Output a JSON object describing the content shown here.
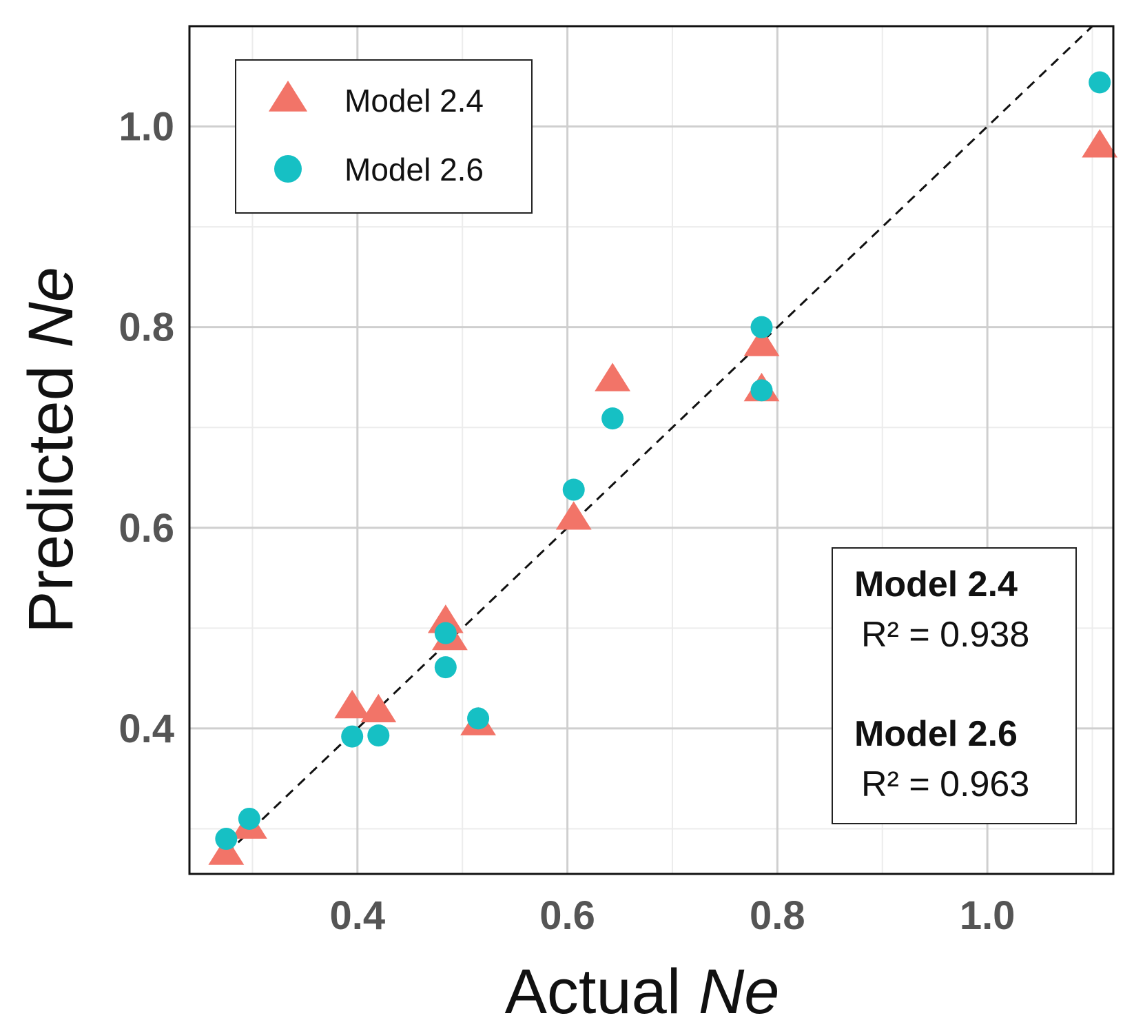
{
  "chart_data": {
    "type": "scatter",
    "xlabel_text": "Actual ",
    "xlabel_var": "Ne",
    "ylabel_text": "Predicted ",
    "ylabel_var": "Ne",
    "xlim": [
      0.24,
      1.12
    ],
    "ylim": [
      0.255,
      1.1
    ],
    "x_ticks": [
      "0.4",
      "0.6",
      "0.8",
      "1.0"
    ],
    "y_ticks": [
      "0.4",
      "0.6",
      "0.8",
      "1.0"
    ],
    "reference_line": "y = x",
    "grid": true,
    "legend_position": "top-left",
    "series": [
      {
        "name": "Model 2.4",
        "marker": "triangle",
        "color": "#f27468",
        "x": [
          0.275,
          0.297,
          0.395,
          0.42,
          0.484,
          0.488,
          0.515,
          0.606,
          0.643,
          0.785,
          0.785,
          1.107
        ],
        "y": [
          0.276,
          0.302,
          0.422,
          0.418,
          0.507,
          0.49,
          0.405,
          0.61,
          0.748,
          0.783,
          0.738,
          0.981
        ]
      },
      {
        "name": "Model 2.6",
        "marker": "circle",
        "color": "#16c0c4",
        "x": [
          0.275,
          0.297,
          0.395,
          0.42,
          0.484,
          0.484,
          0.515,
          0.606,
          0.643,
          0.785,
          0.785,
          1.107
        ],
        "y": [
          0.29,
          0.31,
          0.392,
          0.393,
          0.495,
          0.461,
          0.41,
          0.638,
          0.709,
          0.8,
          0.737,
          1.044
        ]
      }
    ],
    "stats": [
      {
        "model": "Model 2.4",
        "r2_label": "R² = 0.938"
      },
      {
        "model": "Model 2.6",
        "r2_label": "R² = 0.963"
      }
    ]
  }
}
